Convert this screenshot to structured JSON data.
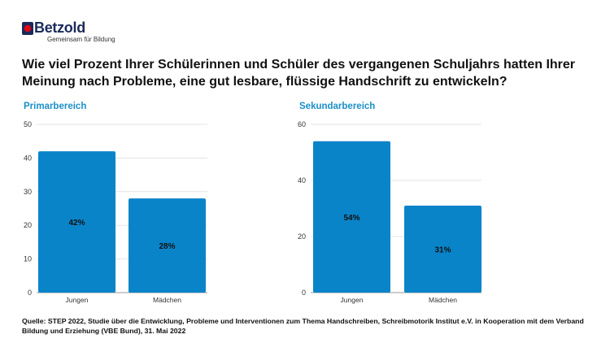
{
  "brand": {
    "name": "Betzold",
    "tagline": "Gemeinsam für Bildung",
    "colors": {
      "primary": "#1a2a5a",
      "accent": "#e30613"
    }
  },
  "question": "Wie viel Prozent Ihrer Schülerinnen und Schüler des vergangenen Schuljahrs hatten Ihrer Meinung nach Probleme, eine gut lesbare, flüssige Handschrift zu entwickeln?",
  "accent_color": "#1a8fc8",
  "bar_color": "#0a84c9",
  "chart_data": [
    {
      "type": "bar",
      "title": "Primarbereich",
      "categories": [
        "Jungen",
        "Mädchen"
      ],
      "values": [
        42,
        28
      ],
      "value_labels": [
        "42%",
        "28%"
      ],
      "ylim": [
        0,
        50
      ],
      "yticks": [
        0,
        10,
        20,
        30,
        40,
        50
      ],
      "grid": true
    },
    {
      "type": "bar",
      "title": "Sekundarbereich",
      "categories": [
        "Jungen",
        "Mädchen"
      ],
      "values": [
        54,
        31
      ],
      "value_labels": [
        "54%",
        "31%"
      ],
      "ylim": [
        0,
        60
      ],
      "yticks": [
        0,
        20,
        40,
        60
      ],
      "grid": true
    }
  ],
  "source": "Quelle: STEP 2022, Studie über die Entwicklung, Probleme und Interventionen zum Thema Handschreiben, Schreibmotorik Institut e.V. in Kooperation mit dem Verband Bildung und Erziehung (VBE Bund), 31. Mai 2022"
}
